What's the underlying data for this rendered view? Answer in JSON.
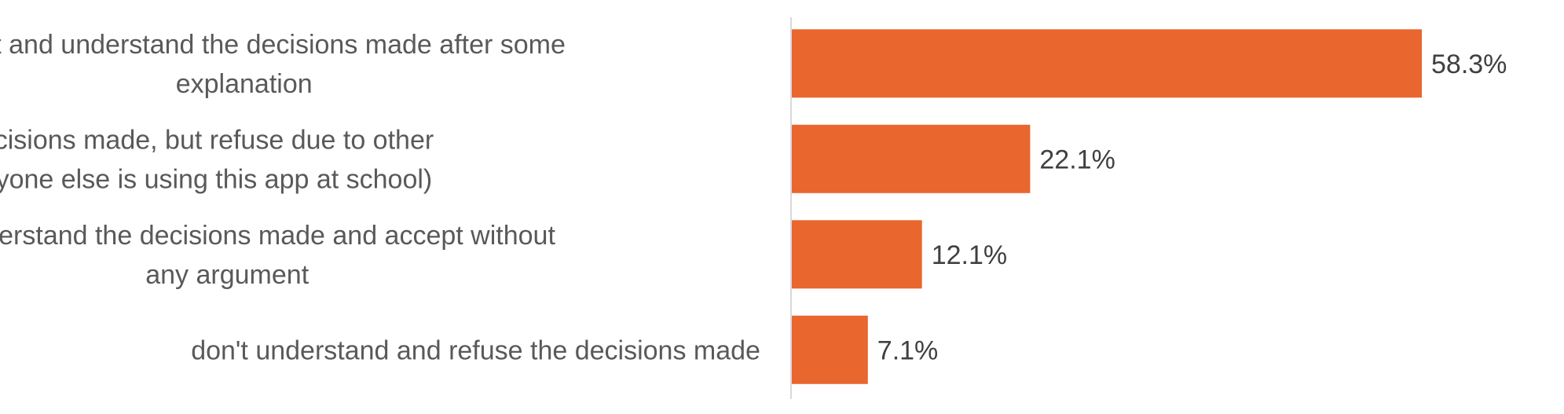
{
  "chart_data": {
    "type": "bar",
    "orientation": "horizontal",
    "categories": [
      [
        "accept and understand the decisions made after some",
        "explanation"
      ],
      [
        "understand the decisions made, but refuse due to other",
        "reasons (e.g. everyone else is using this app at school)"
      ],
      [
        "fully understand the decisions made and accept without",
        "any argument"
      ],
      [
        "don't understand and refuse the decisions made"
      ]
    ],
    "values": [
      58.3,
      22.1,
      12.1,
      7.1
    ],
    "value_labels": [
      "58.3%",
      "22.1%",
      "12.1%",
      "7.1%"
    ],
    "xlim": [
      0,
      70
    ],
    "grid": false,
    "bar_color": "#E9662F",
    "axis_color": "#D9D9D9"
  }
}
